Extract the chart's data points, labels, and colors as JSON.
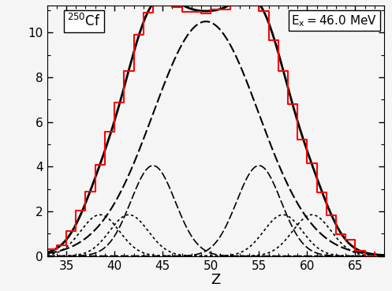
{
  "title_nucleus": "250Cf",
  "annotation": "E_x = 46.0 MeV",
  "xlabel": "Z",
  "xlim": [
    33,
    68
  ],
  "ylim": [
    0,
    11.2
  ],
  "yticks": [
    0,
    2,
    4,
    6,
    8,
    10
  ],
  "xticks": [
    35,
    40,
    45,
    50,
    55,
    60,
    65
  ],
  "background_color": "#f5f5f5",
  "gaussians": [
    {
      "amp": 10.5,
      "mu": 49.5,
      "sigma": 5.5
    },
    {
      "amp": 4.05,
      "mu": 44.0,
      "sigma": 2.3
    },
    {
      "amp": 4.05,
      "mu": 55.0,
      "sigma": 2.3
    },
    {
      "amp": 1.85,
      "mu": 38.5,
      "sigma": 2.0
    },
    {
      "amp": 1.85,
      "mu": 41.5,
      "sigma": 2.0
    },
    {
      "amp": 1.85,
      "mu": 57.5,
      "sigma": 2.0
    },
    {
      "amp": 1.85,
      "mu": 60.5,
      "sigma": 2.0
    }
  ],
  "histogram_color": "red",
  "fit_color": "black",
  "component_color": "black",
  "histogram_noise_scale": 0.12,
  "random_seed": 42,
  "figsize": [
    4.97,
    3.69
  ],
  "dpi": 100
}
